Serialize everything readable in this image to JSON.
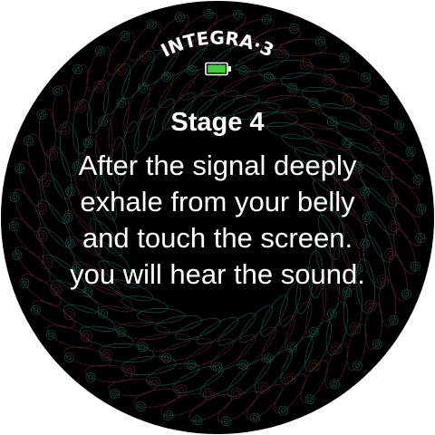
{
  "app": {
    "brand": "INTEGRA·3"
  },
  "status": {
    "battery_icon": "battery-full-icon",
    "battery_color": "#3fcf3a"
  },
  "stage": {
    "title": "Stage 4",
    "instructions": [
      "After the signal deeply",
      "exhale from your belly",
      "and touch the screen.",
      "you will hear the sound."
    ]
  },
  "colors": {
    "background": "#000000",
    "text": "#ffffff",
    "pattern_green": "#1f5e52",
    "pattern_red": "#5a2828"
  }
}
